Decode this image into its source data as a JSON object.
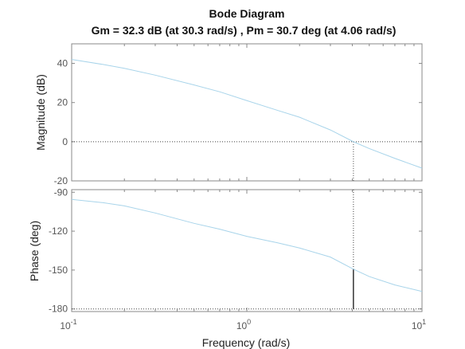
{
  "chart_data": {
    "type": "line",
    "title": "Bode Diagram",
    "subtitle": "Gm = 32.3 dB (at 30.3 rad/s) ,  Pm = 30.7 deg (at 4.06 rad/s)",
    "xlabel": "Frequency  (rad/s)",
    "xscale": "log",
    "xlim": [
      0.1,
      10
    ],
    "x_ticks": [
      {
        "base": "10",
        "exp": "-1",
        "value": 0.1
      },
      {
        "base": "10",
        "exp": "0",
        "value": 1
      },
      {
        "base": "10",
        "exp": "1",
        "value": 10
      }
    ],
    "gain_margin_db": 32.3,
    "gain_margin_freq": 30.3,
    "phase_margin_deg": 30.7,
    "phase_margin_freq": 4.06,
    "grid": false,
    "color": "#a8d4ea",
    "subplots": [
      {
        "name": "magnitude",
        "ylabel": "Magnitude (dB)",
        "ylim": [
          -20,
          50
        ],
        "yticks": [
          -20,
          0,
          20,
          40
        ],
        "reference_y": 0,
        "x": [
          0.1,
          0.15,
          0.2,
          0.3,
          0.5,
          0.7,
          1.0,
          1.5,
          2.0,
          3.0,
          4.06,
          5.0,
          7.0,
          10.0
        ],
        "y": [
          42,
          39.5,
          37.5,
          34,
          29,
          25.5,
          21,
          16,
          12.5,
          6,
          0,
          -3.5,
          -8.5,
          -13.5
        ]
      },
      {
        "name": "phase",
        "ylabel": "Phase (deg)",
        "ylim": [
          -182,
          -88
        ],
        "yticks": [
          -180,
          -150,
          -120,
          -90
        ],
        "reference_y": -180,
        "x": [
          0.1,
          0.15,
          0.2,
          0.3,
          0.5,
          0.7,
          1.0,
          1.5,
          2.0,
          3.0,
          4.06,
          5.0,
          7.0,
          10.0
        ],
        "y": [
          -95.5,
          -98,
          -100.5,
          -106,
          -114,
          -118.5,
          -124,
          -129,
          -133,
          -140,
          -149.3,
          -155,
          -161.5,
          -166.5
        ]
      }
    ]
  }
}
